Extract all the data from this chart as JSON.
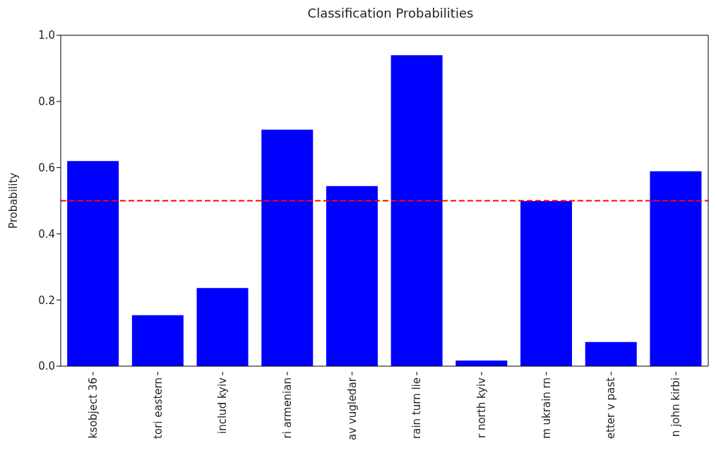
{
  "chart_data": {
    "type": "bar",
    "title": "Classification Probabilities",
    "ylabel": "Probability",
    "categories": [
      "ksobject 36",
      "tori eastern",
      "includ kyiv",
      "ri armenian",
      "av vugledar",
      "rain turn lie",
      "r north kyiv",
      "m ukrain rn",
      "etter v past",
      "n john kirbi"
    ],
    "values": [
      0.62,
      0.154,
      0.236,
      0.715,
      0.544,
      0.94,
      0.017,
      0.499,
      0.073,
      0.589
    ],
    "color": "#0000ff",
    "ylim": [
      0,
      1
    ],
    "yticks": [
      {
        "value": 0,
        "label": "0.0"
      },
      {
        "value": 0.2,
        "label": "0.2"
      },
      {
        "value": 0.4,
        "label": "0.4"
      },
      {
        "value": 0.6,
        "label": "0.6"
      },
      {
        "value": 0.8,
        "label": "0.8"
      },
      {
        "value": 1,
        "label": "1.0"
      }
    ],
    "ref_lines": [
      {
        "axis": "y",
        "value": 0.5,
        "color": "#ff0000",
        "line_style": "dashed"
      }
    ],
    "grid": false
  }
}
